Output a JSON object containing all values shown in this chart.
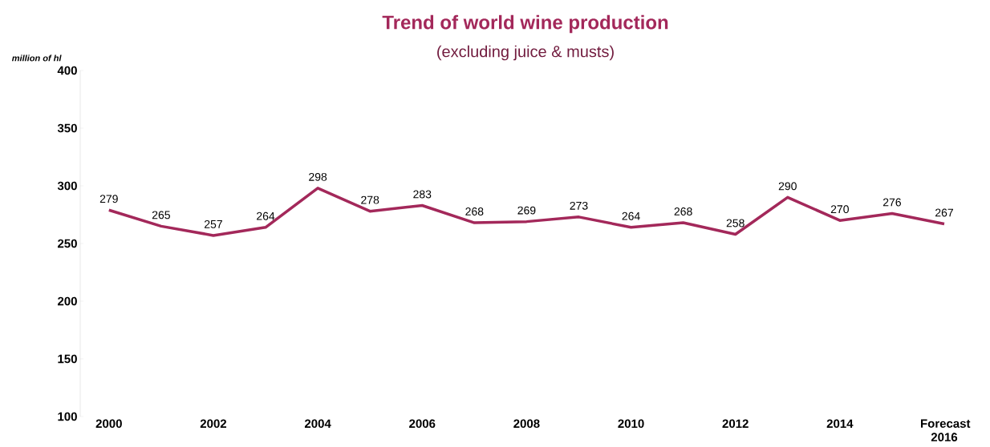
{
  "chart_data": {
    "type": "line",
    "title": "Trend of world wine production",
    "subtitle": "(excluding juice & musts)",
    "ylabel": "million of hl",
    "categories": [
      "2000",
      null,
      "2002",
      null,
      "2004",
      null,
      "2006",
      null,
      "2008",
      null,
      "2010",
      null,
      "2012",
      null,
      "2014",
      null,
      "Forecast 2016"
    ],
    "values": [
      279,
      265,
      257,
      264,
      298,
      278,
      283,
      268,
      269,
      273,
      264,
      268,
      258,
      290,
      270,
      276,
      267
    ],
    "color": "#a3285a",
    "marker": "none",
    "data_labels": true,
    "ylim": [
      100,
      400
    ],
    "yticks": [
      100,
      150,
      200,
      250,
      300,
      350,
      400
    ]
  }
}
